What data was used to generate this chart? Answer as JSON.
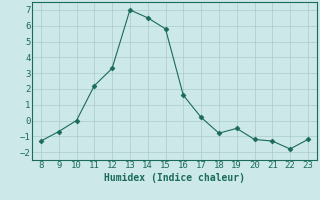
{
  "x": [
    8,
    9,
    10,
    11,
    12,
    13,
    14,
    15,
    16,
    17,
    18,
    19,
    20,
    21,
    22,
    23
  ],
  "y": [
    -1.3,
    -0.7,
    0.0,
    2.2,
    3.3,
    7.0,
    6.5,
    5.8,
    1.6,
    0.2,
    -0.8,
    -0.5,
    -1.2,
    -1.3,
    -1.8,
    -1.2
  ],
  "line_color": "#1a6b5a",
  "marker": "D",
  "marker_size": 2.5,
  "bg_color": "#cce8e8",
  "grid_color": "#aacccc",
  "xlabel": "Humidex (Indice chaleur)",
  "xlim": [
    7.5,
    23.5
  ],
  "ylim": [
    -2.5,
    7.5
  ],
  "xticks": [
    8,
    9,
    10,
    11,
    12,
    13,
    14,
    15,
    16,
    17,
    18,
    19,
    20,
    21,
    22,
    23
  ],
  "yticks": [
    -2,
    -1,
    0,
    1,
    2,
    3,
    4,
    5,
    6,
    7
  ],
  "font_color": "#1a6b5a",
  "tick_font_size": 6.5,
  "xlabel_font_size": 7.0
}
